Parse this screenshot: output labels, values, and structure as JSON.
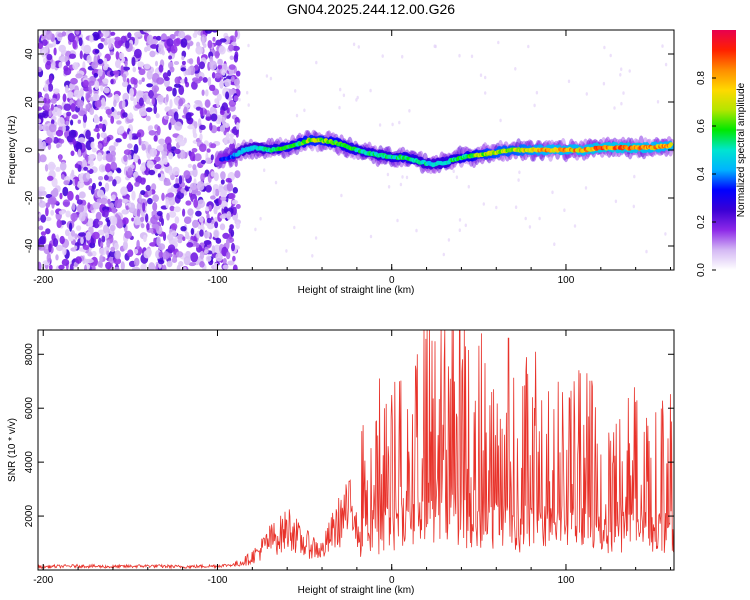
{
  "title": "GN04.2025.244.12.00.G26",
  "chart_data": [
    {
      "type": "heatmap",
      "title": "GN04.2025.244.12.00.G26",
      "xlabel": "Height of straight line (km)",
      "ylabel": "Frequency (Hz)",
      "xlim": [
        -203,
        162
      ],
      "ylim": [
        -50,
        50
      ],
      "xticks": [
        -200,
        -100,
        0,
        100
      ],
      "yticks": [
        -40,
        -20,
        0,
        20,
        40
      ],
      "noise_region": {
        "x_range": [
          -203,
          -88
        ],
        "y_range": [
          -50,
          50
        ],
        "level": "low (0.0-0.25)"
      },
      "signal_trace": {
        "x": [
          -100,
          -92,
          -85,
          -78,
          -70,
          -62,
          -55,
          -48,
          -40,
          -32,
          -24,
          -16,
          -8,
          0,
          8,
          16,
          24,
          32,
          40,
          50,
          60,
          70,
          80,
          90,
          100,
          110,
          120,
          130,
          140,
          150,
          160
        ],
        "frequency": [
          -4,
          -3,
          0,
          1,
          0,
          1,
          2,
          4,
          4,
          3,
          1,
          -1,
          -2,
          -3,
          -3,
          -5,
          -6,
          -5,
          -3,
          -2,
          -1,
          0,
          0,
          0,
          0,
          0,
          1,
          1,
          1,
          1,
          2
        ],
        "amplitude": [
          0.3,
          0.4,
          0.5,
          0.5,
          0.55,
          0.6,
          0.6,
          0.7,
          0.7,
          0.65,
          0.6,
          0.55,
          0.55,
          0.55,
          0.6,
          0.55,
          0.5,
          0.55,
          0.6,
          0.7,
          0.75,
          0.75,
          0.8,
          0.85,
          0.85,
          0.85,
          0.9,
          0.9,
          0.9,
          0.85,
          0.85
        ]
      },
      "colorbar": {
        "label": "Normalized spectral amplitude",
        "range": [
          0,
          1
        ],
        "ticks": [
          "0.0",
          "0.2",
          "0.4",
          "0.6",
          "0.8"
        ],
        "colormap": [
          "#ffffff",
          "#d4b8f4",
          "#8d29e8",
          "#3a00d5",
          "#0000ff",
          "#00b3ff",
          "#00e5d0",
          "#00e800",
          "#b4e500",
          "#ffd900",
          "#ff8c00",
          "#ff2000",
          "#e8004f"
        ]
      }
    },
    {
      "type": "line",
      "xlabel": "Height of straight line (km)",
      "ylabel": "SNR (10 * v/v)",
      "xlim": [
        -203,
        162
      ],
      "ylim": [
        0,
        8900
      ],
      "xticks": [
        -200,
        -100,
        0,
        100
      ],
      "yticks": [
        2000,
        4000,
        6000,
        8000
      ],
      "series": [
        {
          "name": "SNR",
          "color": "#e8322a",
          "x": [
            -200,
            -180,
            -160,
            -140,
            -120,
            -100,
            -90,
            -82,
            -76,
            -70,
            -64,
            -58,
            -52,
            -46,
            -40,
            -34,
            -28,
            -22,
            -16,
            -10,
            -6,
            -2,
            0,
            4,
            8,
            12,
            16,
            20,
            24,
            28,
            32,
            36,
            40,
            44,
            48,
            52,
            56,
            60,
            64,
            68,
            72,
            76,
            80,
            85,
            90,
            95,
            100,
            110,
            120,
            130,
            140,
            150,
            160
          ],
          "y": [
            120,
            150,
            120,
            150,
            120,
            150,
            200,
            400,
            700,
            1100,
            1300,
            1600,
            1000,
            900,
            700,
            1400,
            2000,
            2300,
            3200,
            3600,
            4000,
            5200,
            3800,
            4500,
            5500,
            4300,
            5800,
            5600,
            6000,
            6500,
            5800,
            6200,
            5500,
            5200,
            5600,
            5300,
            4800,
            5200,
            5000,
            4700,
            4200,
            4600,
            4900,
            4400,
            4600,
            4300,
            4400,
            4300,
            4200,
            4100,
            4000,
            3900,
            4000
          ],
          "peaks": [
            {
              "x": 39,
              "y": 8900
            },
            {
              "x": 23,
              "y": 8500
            },
            {
              "x": 67,
              "y": 8600
            },
            {
              "x": -7,
              "y": 7100
            }
          ]
        }
      ]
    }
  ]
}
